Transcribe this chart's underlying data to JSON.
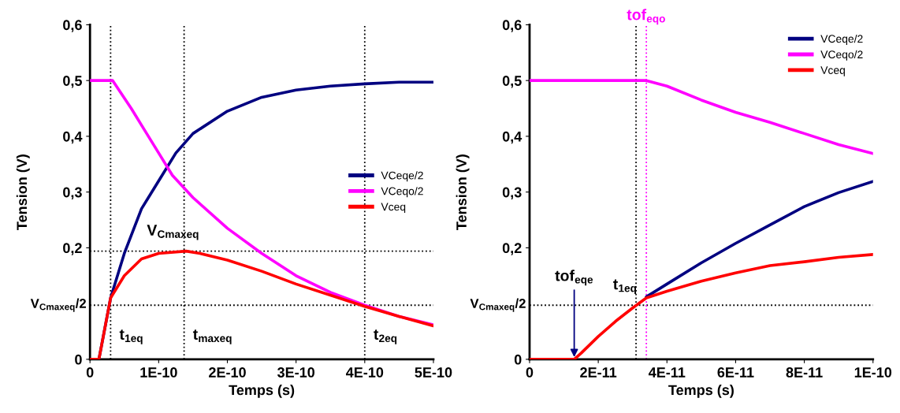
{
  "chart_data": [
    {
      "type": "line",
      "xlabel": "Temps (s)",
      "ylabel": "Tension (V)",
      "xlim": [
        0,
        5e-10
      ],
      "xticks": [
        0,
        {
          "value": 1e-10,
          "label": "1E-10"
        },
        {
          "value": 2e-10,
          "label": "2E-10"
        },
        {
          "value": 3e-10,
          "label": "3E-10"
        },
        {
          "value": 4e-10,
          "label": "4E-10"
        },
        {
          "value": 5e-10,
          "label": "5E-10"
        }
      ],
      "ylim": [
        0,
        0.6
      ],
      "yticks": [
        0,
        {
          "value": 0.2,
          "label": "0,2"
        },
        {
          "value": 0.3,
          "label": "0,3"
        },
        {
          "value": 0.4,
          "label": "0,4"
        },
        {
          "value": 0.5,
          "label": "0,5"
        },
        {
          "value": 0.6,
          "label": "0,6"
        }
      ],
      "grid": false,
      "legend": "right",
      "series": [
        {
          "name": "VCeqe/2",
          "color": "#000080",
          "x": [
            0,
            1.3e-11,
            3e-11,
            5e-11,
            7.5e-11,
            1e-10,
            1.25e-10,
            1.5e-10,
            2e-10,
            2.5e-10,
            3e-10,
            3.5e-10,
            4e-10,
            4.5e-10,
            5e-10
          ],
          "values": [
            0,
            0,
            0.11,
            0.19,
            0.27,
            0.32,
            0.37,
            0.405,
            0.445,
            0.47,
            0.483,
            0.49,
            0.494,
            0.497,
            0.497
          ]
        },
        {
          "name": "VCeqo/2",
          "color": "#ff00ff",
          "x": [
            0,
            3.3e-11,
            6e-11,
            8e-11,
            1e-10,
            1.2e-10,
            1.5e-10,
            2e-10,
            2.5e-10,
            3e-10,
            3.5e-10,
            4e-10,
            4.5e-10,
            5e-10
          ],
          "values": [
            0.5,
            0.5,
            0.45,
            0.41,
            0.37,
            0.33,
            0.29,
            0.235,
            0.19,
            0.15,
            0.12,
            0.097,
            0.077,
            0.062
          ]
        },
        {
          "name": "Vceq",
          "color": "#ff0000",
          "x": [
            0,
            1.3e-11,
            3e-11,
            5e-11,
            7.5e-11,
            1e-10,
            1.4e-10,
            1.6e-10,
            2e-10,
            2.5e-10,
            3e-10,
            3.5e-10,
            4e-10,
            4.5e-10,
            5e-10
          ],
          "values": [
            0,
            0,
            0.11,
            0.15,
            0.18,
            0.19,
            0.194,
            0.19,
            0.178,
            0.158,
            0.135,
            0.115,
            0.095,
            0.077,
            0.06
          ]
        }
      ],
      "ref_lines": [
        {
          "axis": "y",
          "value": 0.194,
          "color": "#000000",
          "line_style": "dotted"
        },
        {
          "axis": "y",
          "value": 0.097,
          "label": "V$_{Cmaxeq}$/2",
          "color": "#000000",
          "line_style": "dotted"
        },
        {
          "axis": "x",
          "value": 3e-11,
          "color": "#000000",
          "line_style": "dotted"
        },
        {
          "axis": "x",
          "value": 1.37e-10,
          "color": "#000000",
          "line_style": "dotted"
        },
        {
          "axis": "x",
          "value": 4e-10,
          "color": "#000000",
          "line_style": "dotted"
        }
      ],
      "annotations": [
        {
          "text": "V$_{Cmaxeq}$",
          "x": 1.37e-10,
          "y": 0.194
        },
        {
          "text": "t$_{1eq}$",
          "x": 3e-11,
          "y": 0.04
        },
        {
          "text": "t$_{maxeq}$",
          "x": 1.37e-10,
          "y": 0.04
        },
        {
          "text": "t$_{2eq}$",
          "x": 4e-10,
          "y": 0.04
        }
      ]
    },
    {
      "type": "line",
      "xlabel": "Temps (s)",
      "ylabel": "Tension (V)",
      "xlim": [
        0,
        1e-10
      ],
      "xticks": [
        0,
        {
          "value": 2e-11,
          "label": "2E-11"
        },
        {
          "value": 4e-11,
          "label": "4E-11"
        },
        {
          "value": 6e-11,
          "label": "6E-11"
        },
        {
          "value": 8e-11,
          "label": "8E-11"
        },
        {
          "value": 1e-10,
          "label": "1E-10"
        }
      ],
      "ylim": [
        0,
        0.6
      ],
      "yticks": [
        0,
        {
          "value": 0.2,
          "label": "0,2"
        },
        {
          "value": 0.3,
          "label": "0,3"
        },
        {
          "value": 0.4,
          "label": "0,4"
        },
        {
          "value": 0.5,
          "label": "0,5"
        },
        {
          "value": 0.6,
          "label": "0,6"
        }
      ],
      "grid": false,
      "legend": "top right",
      "series": [
        {
          "name": "VCeqe/2",
          "color": "#000080",
          "x": [
            3.4e-11,
            4e-11,
            5e-11,
            6e-11,
            7e-11,
            8e-11,
            9e-11,
            1e-10
          ],
          "values": [
            0.112,
            0.135,
            0.173,
            0.208,
            0.241,
            0.274,
            0.299,
            0.319
          ]
        },
        {
          "name": "VCeqo/2",
          "color": "#ff00ff",
          "x": [
            0,
            3.4e-11,
            4e-11,
            5e-11,
            6e-11,
            7e-11,
            8e-11,
            9e-11,
            1e-10
          ],
          "values": [
            0.5,
            0.5,
            0.49,
            0.465,
            0.443,
            0.425,
            0.405,
            0.385,
            0.369
          ]
        },
        {
          "name": "Vceq",
          "color": "#ff0000",
          "x": [
            0,
            1.3e-11,
            1.5e-11,
            2e-11,
            2.5e-11,
            3e-11,
            3.4e-11,
            4e-11,
            5e-11,
            6e-11,
            7e-11,
            8e-11,
            9e-11,
            1e-10
          ],
          "values": [
            0,
            0,
            0.011,
            0.041,
            0.068,
            0.092,
            0.11,
            0.122,
            0.14,
            0.155,
            0.168,
            0.175,
            0.183,
            0.188
          ]
        }
      ],
      "ref_lines": [
        {
          "axis": "y",
          "value": 0.097,
          "label": "V$_{Cmaxeq}$/2",
          "color": "#000000",
          "line_style": "dotted"
        },
        {
          "axis": "x",
          "value": 3.1e-11,
          "color": "#000000",
          "line_style": "dotted"
        },
        {
          "axis": "x",
          "value": 3.4e-11,
          "label": "tof$_{eqo}$",
          "color": "#ff00ff",
          "line_style": "dotted"
        }
      ],
      "annotations": [
        {
          "text": "tof$_{eqe}$",
          "x": 1.3e-11,
          "y": 0
        },
        {
          "text": "t$_{1eq}$",
          "x": 3.1e-11,
          "y": 0.097
        }
      ]
    }
  ]
}
